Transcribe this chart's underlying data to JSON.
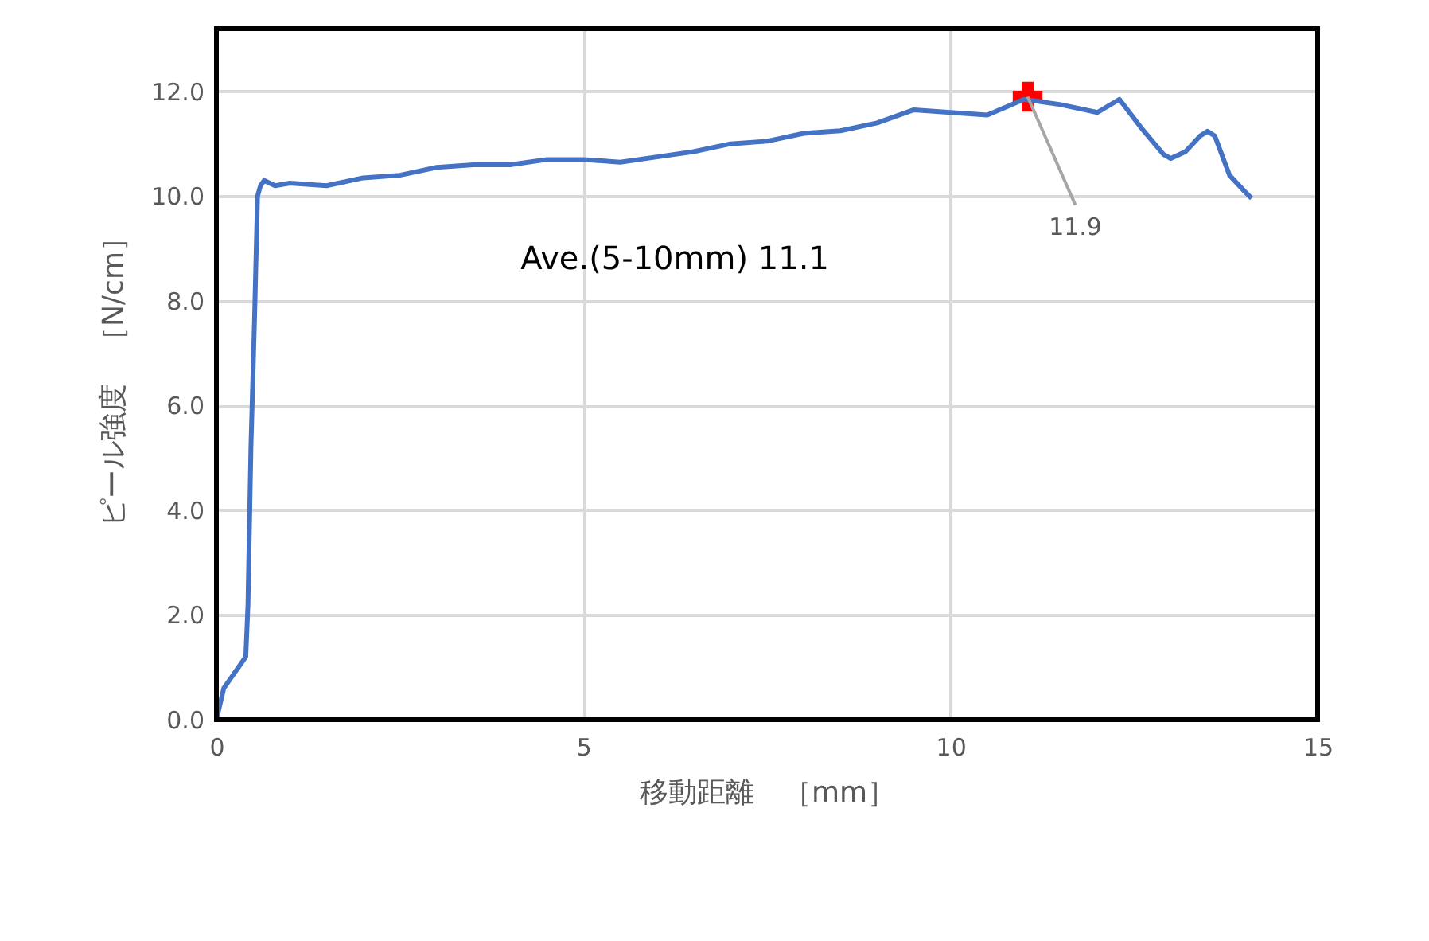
{
  "chart_data": {
    "type": "line",
    "xlabel": "移動距離　［mm］",
    "ylabel": "ピール強度　［N/cm］",
    "xlim": [
      0,
      15
    ],
    "xticks": [
      0,
      5,
      10,
      15
    ],
    "ylim": [
      0,
      13.2
    ],
    "yticks": [
      {
        "value": 0,
        "label": "0.0"
      },
      {
        "value": 2,
        "label": "2.0"
      },
      {
        "value": 4,
        "label": "4.0"
      },
      {
        "value": 6,
        "label": "6.0"
      },
      {
        "value": 8,
        "label": "8.0"
      },
      {
        "value": 10,
        "label": "10.0"
      },
      {
        "value": 12,
        "label": "12.0"
      }
    ],
    "grid": true,
    "marker": "none",
    "line_style": "solid",
    "series": [
      {
        "color": "#4472c4",
        "x": [
          0,
          0.05,
          0.1,
          0.2,
          0.3,
          0.4,
          0.43,
          0.47,
          0.52,
          0.56,
          0.6,
          0.65,
          0.8,
          1.0,
          1.5,
          2.0,
          2.5,
          3.0,
          3.5,
          4.0,
          4.5,
          5.0,
          5.5,
          6.0,
          6.5,
          7.0,
          7.5,
          8.0,
          8.5,
          9.0,
          9.5,
          10.0,
          10.5,
          11.0,
          11.5,
          12.0,
          12.3,
          12.6,
          12.9,
          13.0,
          13.2,
          13.4,
          13.5,
          13.6,
          13.8,
          14.0,
          14.1
        ],
        "values": [
          0,
          0.3,
          0.6,
          0.8,
          1.0,
          1.2,
          2.2,
          5.2,
          7.7,
          10.0,
          10.2,
          10.3,
          10.2,
          10.25,
          10.2,
          10.35,
          10.4,
          10.55,
          10.6,
          10.6,
          10.7,
          10.7,
          10.65,
          10.75,
          10.85,
          11.0,
          11.05,
          11.2,
          11.25,
          11.4,
          11.65,
          11.6,
          11.55,
          11.85,
          11.75,
          11.6,
          11.85,
          11.3,
          10.8,
          10.72,
          10.85,
          11.15,
          11.24,
          11.15,
          10.4,
          10.1,
          9.96
        ]
      },
      {
        "type": "scatter",
        "color": "#ff0000",
        "marker": "cross",
        "x": [
          11.05
        ],
        "values": [
          11.9
        ]
      }
    ],
    "annotations": [
      "Ave.(5-10mm)    11.1",
      {
        "text": "11.9",
        "x": 11.05,
        "y": 11.9
      }
    ]
  }
}
